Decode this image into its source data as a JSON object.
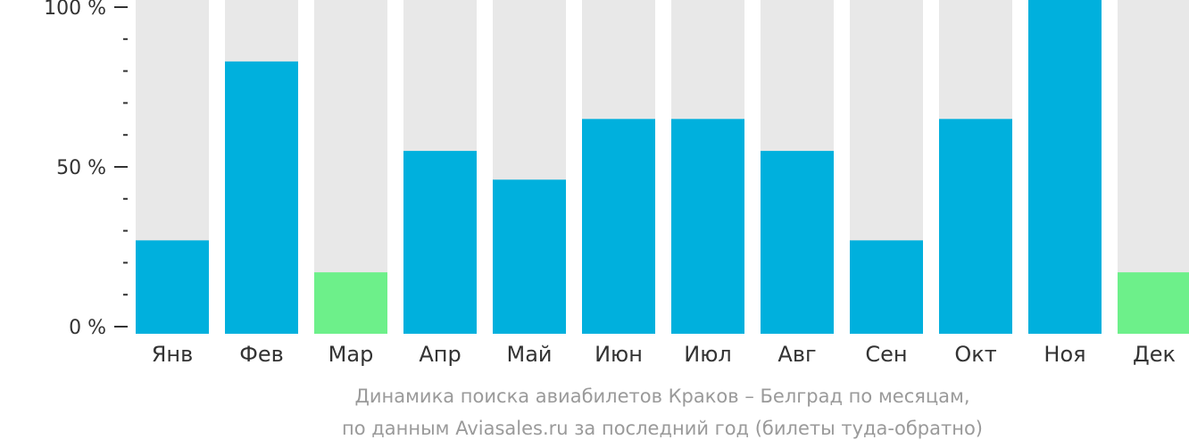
{
  "chart_data": {
    "type": "bar",
    "categories": [
      "Янв",
      "Фев",
      "Мар",
      "Апр",
      "Май",
      "Июн",
      "Июл",
      "Авг",
      "Сен",
      "Окт",
      "Ноя",
      "Дек"
    ],
    "values": [
      27,
      83,
      17,
      55,
      46,
      65,
      65,
      55,
      27,
      65,
      100,
      17
    ],
    "ylim": [
      0,
      100
    ],
    "yticks": [
      {
        "value": 0,
        "label": "0 %"
      },
      {
        "value": 50,
        "label": "50 %"
      },
      {
        "value": 100,
        "label": "100 %"
      }
    ],
    "minor_tick_step": 10,
    "grid": false,
    "colors": {
      "bar": "#00b0dd",
      "bar_lowest": "#6df08a",
      "background_bar": "#e8e8e8",
      "axis": "#333333"
    },
    "highlight_lowest": [
      "Мар",
      "Дек"
    ]
  },
  "caption": {
    "line1": "Динамика поиска авиабилетов Краков – Белград по месяцам,",
    "line2": "по данным Aviasales.ru за последний год (билеты туда-обратно)"
  }
}
